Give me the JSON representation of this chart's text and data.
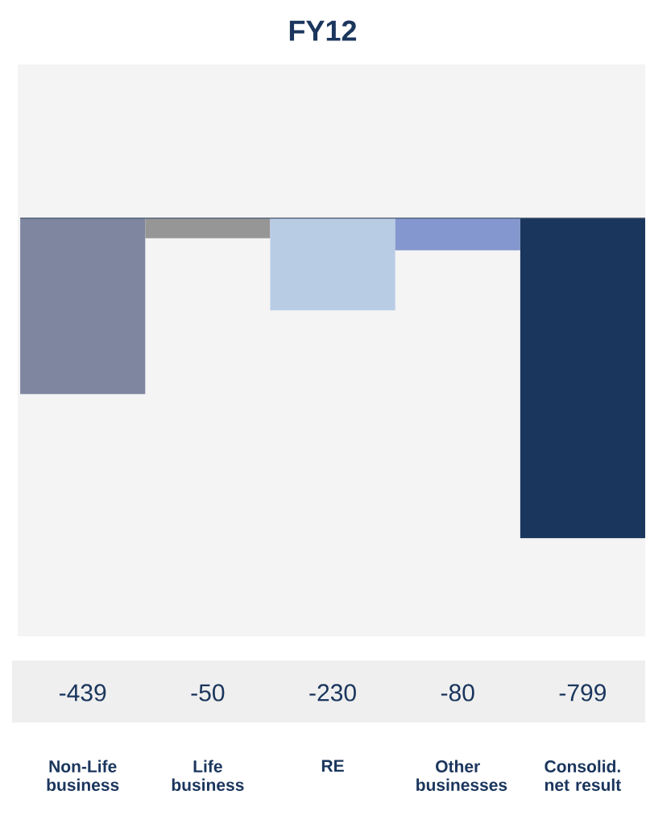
{
  "chart_data": {
    "type": "bar",
    "title": "FY12",
    "categories": [
      "Non-Life business",
      "Life business",
      "RE",
      "Other businesses",
      "Consolid. net result"
    ],
    "values": [
      -439,
      -50,
      -230,
      -80,
      -799
    ],
    "colors": [
      "#7f87a0",
      "#969696",
      "#b8cce4",
      "#8497cf",
      "#1b365d"
    ],
    "ylim": [
      -1044,
      384
    ],
    "data_labels": true,
    "ref_lines": [
      {
        "axis": "y",
        "value": 0,
        "color": "#44546a"
      }
    ]
  }
}
